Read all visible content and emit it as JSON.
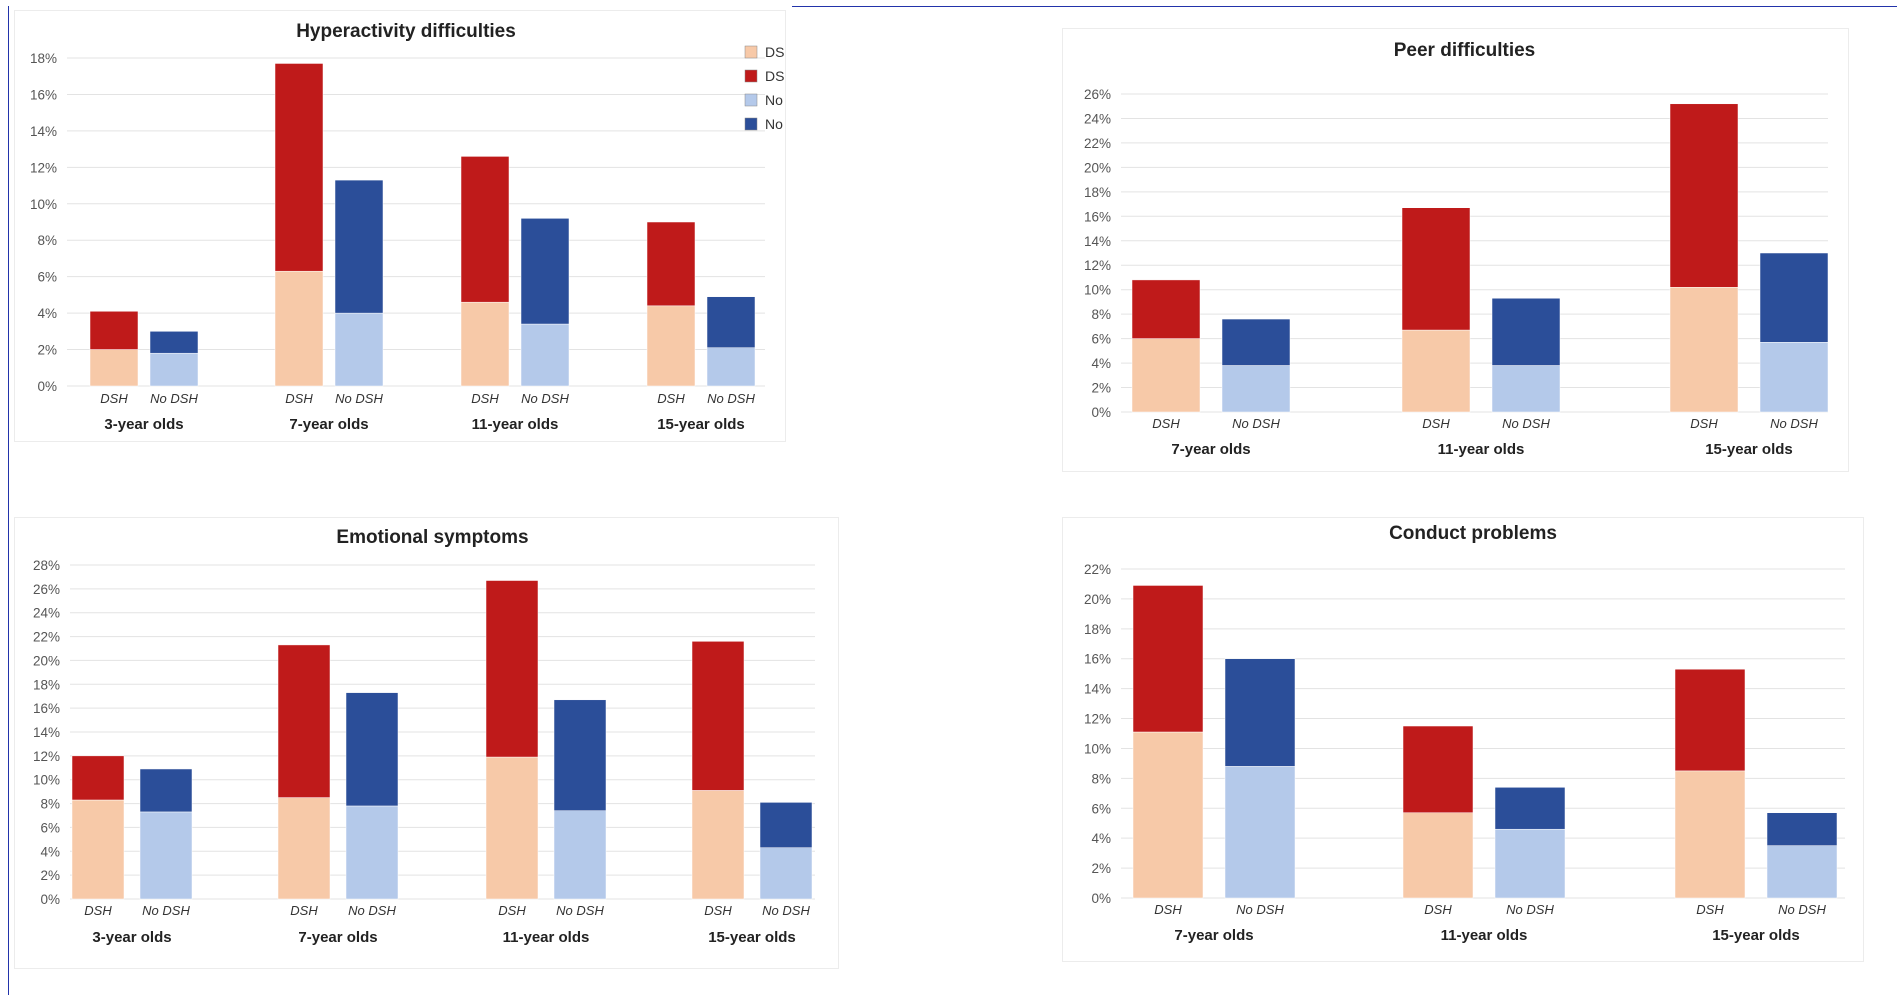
{
  "colors": {
    "dsh_border": "#f7c9a8",
    "dsh_abnormal": "#bf1a1a",
    "nodsh_border": "#b4c9ea",
    "nodsh_abnormal": "#2b4e99",
    "gridline": "#e3e3e3"
  },
  "legend": {
    "items": [
      {
        "label": "DSH: Borderline score",
        "color_key": "dsh_border"
      },
      {
        "label": "DSH: Abnormal score",
        "color_key": "dsh_abnormal"
      },
      {
        "label": "No DSH: Borderline score",
        "color_key": "nodsh_border"
      },
      {
        "label": "No DSH: Abnormal score",
        "color_key": "nodsh_abnormal"
      }
    ]
  },
  "chart_data": [
    {
      "type": "bar",
      "stacked": true,
      "title": "Hyperactivity difficulties",
      "ylim": [
        0,
        18
      ],
      "ystep": 2,
      "yunit": "%",
      "legend_position": "top-right",
      "groups": [
        {
          "label": "3-year olds",
          "bars": [
            {
              "category": "DSH",
              "borderline": 2.0,
              "abnormal": 2.1
            },
            {
              "category": "No DSH",
              "borderline": 1.8,
              "abnormal": 1.2
            }
          ]
        },
        {
          "label": "7-year olds",
          "bars": [
            {
              "category": "DSH",
              "borderline": 6.3,
              "abnormal": 11.4
            },
            {
              "category": "No DSH",
              "borderline": 4.0,
              "abnormal": 7.3
            }
          ]
        },
        {
          "label": "11-year olds",
          "bars": [
            {
              "category": "DSH",
              "borderline": 4.6,
              "abnormal": 8.0
            },
            {
              "category": "No DSH",
              "borderline": 3.4,
              "abnormal": 5.8
            }
          ]
        },
        {
          "label": "15-year olds",
          "bars": [
            {
              "category": "DSH",
              "borderline": 4.4,
              "abnormal": 4.6
            },
            {
              "category": "No DSH",
              "borderline": 2.1,
              "abnormal": 2.8
            }
          ]
        }
      ]
    },
    {
      "type": "bar",
      "stacked": true,
      "title": "Peer difficulties",
      "ylim": [
        0,
        26
      ],
      "ystep": 2,
      "yunit": "%",
      "groups": [
        {
          "label": "7-year olds",
          "bars": [
            {
              "category": "DSH",
              "borderline": 6.0,
              "abnormal": 4.8
            },
            {
              "category": "No DSH",
              "borderline": 3.8,
              "abnormal": 3.8
            }
          ]
        },
        {
          "label": "11-year olds",
          "bars": [
            {
              "category": "DSH",
              "borderline": 6.7,
              "abnormal": 10.0
            },
            {
              "category": "No DSH",
              "borderline": 3.8,
              "abnormal": 5.5
            }
          ]
        },
        {
          "label": "15-year olds",
          "bars": [
            {
              "category": "DSH",
              "borderline": 10.2,
              "abnormal": 15.0
            },
            {
              "category": "No DSH",
              "borderline": 5.7,
              "abnormal": 7.3
            }
          ]
        }
      ]
    },
    {
      "type": "bar",
      "stacked": true,
      "title": "Emotional symptoms",
      "ylim": [
        0,
        28
      ],
      "ystep": 2,
      "yunit": "%",
      "groups": [
        {
          "label": "3-year olds",
          "bars": [
            {
              "category": "DSH",
              "borderline": 8.3,
              "abnormal": 3.7
            },
            {
              "category": "No DSH",
              "borderline": 7.3,
              "abnormal": 3.6
            }
          ]
        },
        {
          "label": "7-year olds",
          "bars": [
            {
              "category": "DSH",
              "borderline": 8.5,
              "abnormal": 12.8
            },
            {
              "category": "No DSH",
              "borderline": 7.8,
              "abnormal": 9.5
            }
          ]
        },
        {
          "label": "11-year olds",
          "bars": [
            {
              "category": "DSH",
              "borderline": 11.9,
              "abnormal": 14.8
            },
            {
              "category": "No DSH",
              "borderline": 7.4,
              "abnormal": 9.3
            }
          ]
        },
        {
          "label": "15-year olds",
          "bars": [
            {
              "category": "DSH",
              "borderline": 9.1,
              "abnormal": 12.5
            },
            {
              "category": "No DSH",
              "borderline": 4.3,
              "abnormal": 3.8
            }
          ]
        }
      ]
    },
    {
      "type": "bar",
      "stacked": true,
      "title": "Conduct problems",
      "ylim": [
        0,
        22
      ],
      "ystep": 2,
      "yunit": "%",
      "groups": [
        {
          "label": "7-year olds",
          "bars": [
            {
              "category": "DSH",
              "borderline": 11.1,
              "abnormal": 9.8
            },
            {
              "category": "No DSH",
              "borderline": 8.8,
              "abnormal": 7.2
            }
          ]
        },
        {
          "label": "11-year olds",
          "bars": [
            {
              "category": "DSH",
              "borderline": 5.7,
              "abnormal": 5.8
            },
            {
              "category": "No DSH",
              "borderline": 4.6,
              "abnormal": 2.8
            }
          ]
        },
        {
          "label": "15-year olds",
          "bars": [
            {
              "category": "DSH",
              "borderline": 8.5,
              "abnormal": 6.8
            },
            {
              "category": "No DSH",
              "borderline": 3.5,
              "abnormal": 2.2
            }
          ]
        }
      ]
    }
  ]
}
